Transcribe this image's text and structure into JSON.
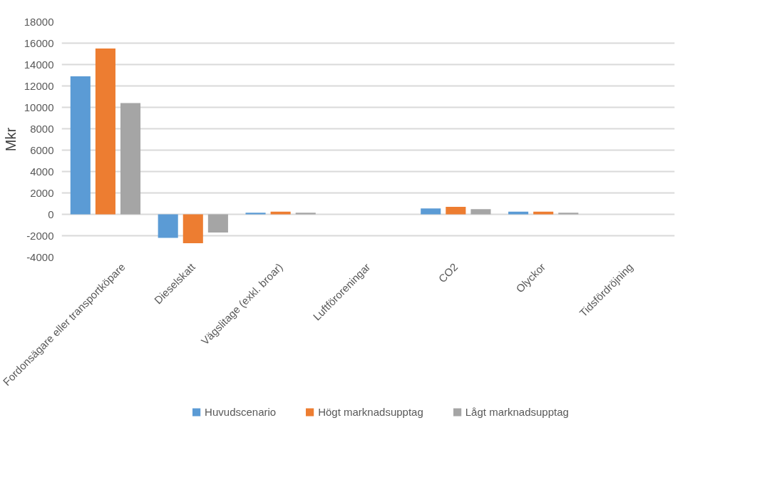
{
  "chart_data": {
    "type": "bar",
    "ylabel": "Mkr",
    "categories": [
      "Fordonsägare eller transportköpare",
      "Dieselskatt",
      "Vägslitage (exkl. broar)",
      "Luftföroreningar",
      "CO2",
      "Olyckor",
      "Tidsfördröjning"
    ],
    "series": [
      {
        "name": "Huvudscenario",
        "color": "#5b9bd5",
        "values": [
          12900,
          -2200,
          150,
          0,
          550,
          250,
          0
        ]
      },
      {
        "name": "Högt marknadsupptag",
        "color": "#ed7d31",
        "values": [
          15500,
          -2700,
          250,
          0,
          700,
          250,
          0
        ]
      },
      {
        "name": "Lågt marknadsupptag",
        "color": "#a5a5a5",
        "values": [
          10400,
          -1700,
          150,
          0,
          480,
          150,
          0
        ]
      }
    ],
    "ylim": [
      -4000,
      18000
    ],
    "yticks": [
      -4000,
      -2000,
      0,
      2000,
      4000,
      6000,
      8000,
      10000,
      12000,
      14000,
      16000,
      18000
    ],
    "grid": "y",
    "legend": "bottom"
  }
}
